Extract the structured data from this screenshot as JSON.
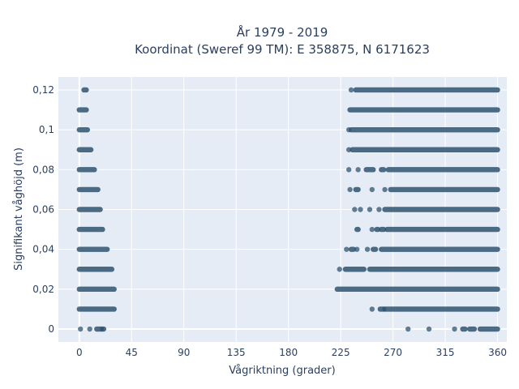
{
  "chart_data": {
    "type": "scatter",
    "title_line1": "År 1979 - 2019",
    "title_line2": "Koordinat (Sweref 99 TM): E 358875, N 6171623",
    "xlabel": "Vågriktning (grader)",
    "ylabel": "Signifikant våghöjd (m)",
    "xlim": [
      -18,
      368
    ],
    "ylim": [
      -0.0065,
      0.1265
    ],
    "x_ticks": [
      0,
      45,
      90,
      135,
      180,
      225,
      270,
      315,
      360
    ],
    "x_tick_labels": [
      "0",
      "45",
      "90",
      "135",
      "180",
      "225",
      "270",
      "315",
      "360"
    ],
    "y_ticks": [
      0,
      0.02,
      0.04,
      0.06,
      0.08,
      0.1,
      0.12
    ],
    "y_tick_labels": [
      "0",
      "0,02",
      "0,04",
      "0,06",
      "0,08",
      "0,1",
      "0,12"
    ],
    "grid": true,
    "marker_color": "#2f5470",
    "plot_background": "#e5ecf6",
    "series": [
      {
        "bands": [
          {
            "y": 0.0,
            "segments": [
              [
                1,
                1
              ],
              [
                9,
                9
              ],
              [
                15,
                19
              ],
              [
                20,
                21
              ]
            ]
          },
          {
            "y": 0.01,
            "segments": [
              [
                0,
                30
              ]
            ]
          },
          {
            "y": 0.02,
            "segments": [
              [
                0,
                30
              ]
            ]
          },
          {
            "y": 0.03,
            "segments": [
              [
                0,
                28
              ]
            ]
          },
          {
            "y": 0.04,
            "segments": [
              [
                0,
                24
              ]
            ]
          },
          {
            "y": 0.05,
            "segments": [
              [
                0,
                20
              ]
            ]
          },
          {
            "y": 0.06,
            "segments": [
              [
                0,
                18
              ]
            ]
          },
          {
            "y": 0.07,
            "segments": [
              [
                0,
                16
              ]
            ]
          },
          {
            "y": 0.08,
            "segments": [
              [
                0,
                13
              ]
            ]
          },
          {
            "y": 0.09,
            "segments": [
              [
                0,
                10
              ]
            ]
          },
          {
            "y": 0.1,
            "segments": [
              [
                0,
                7
              ]
            ]
          },
          {
            "y": 0.11,
            "segments": [
              [
                0,
                6
              ]
            ]
          },
          {
            "y": 0.12,
            "segments": [
              [
                4,
                6
              ]
            ]
          }
        ]
      },
      {
        "bands": [
          {
            "y": 0.0,
            "segments": [
              [
                283,
                283
              ],
              [
                301,
                301
              ],
              [
                323,
                323
              ],
              [
                330,
                332
              ],
              [
                336,
                340
              ],
              [
                345,
                360
              ]
            ]
          },
          {
            "y": 0.01,
            "segments": [
              [
                252,
                252
              ],
              [
                259,
                262
              ],
              [
                263,
                360
              ]
            ]
          },
          {
            "y": 0.02,
            "segments": [
              [
                222,
                360
              ]
            ]
          },
          {
            "y": 0.03,
            "segments": [
              [
                224,
                224
              ],
              [
                229,
                245
              ],
              [
                250,
                360
              ]
            ]
          },
          {
            "y": 0.04,
            "segments": [
              [
                230,
                230
              ],
              [
                234,
                236
              ],
              [
                239,
                239
              ],
              [
                248,
                248
              ],
              [
                253,
                255
              ],
              [
                260,
                360
              ]
            ]
          },
          {
            "y": 0.05,
            "segments": [
              [
                239,
                240
              ],
              [
                252,
                252
              ],
              [
                256,
                257
              ],
              [
                260,
                262
              ],
              [
                265,
                360
              ]
            ]
          },
          {
            "y": 0.06,
            "segments": [
              [
                237,
                237
              ],
              [
                242,
                242
              ],
              [
                250,
                250
              ],
              [
                258,
                258
              ],
              [
                263,
                360
              ]
            ]
          },
          {
            "y": 0.07,
            "segments": [
              [
                233,
                233
              ],
              [
                238,
                240
              ],
              [
                252,
                252
              ],
              [
                263,
                263
              ],
              [
                268,
                360
              ]
            ]
          },
          {
            "y": 0.08,
            "segments": [
              [
                232,
                232
              ],
              [
                240,
                240
              ],
              [
                247,
                253
              ],
              [
                260,
                262
              ],
              [
                266,
                360
              ]
            ]
          },
          {
            "y": 0.09,
            "segments": [
              [
                232,
                232
              ],
              [
                235,
                360
              ]
            ]
          },
          {
            "y": 0.1,
            "segments": [
              [
                232,
                232
              ],
              [
                234,
                360
              ]
            ]
          },
          {
            "y": 0.11,
            "segments": [
              [
                233,
                360
              ]
            ]
          },
          {
            "y": 0.12,
            "segments": [
              [
                234,
                234
              ],
              [
                238,
                360
              ]
            ]
          }
        ]
      }
    ]
  }
}
